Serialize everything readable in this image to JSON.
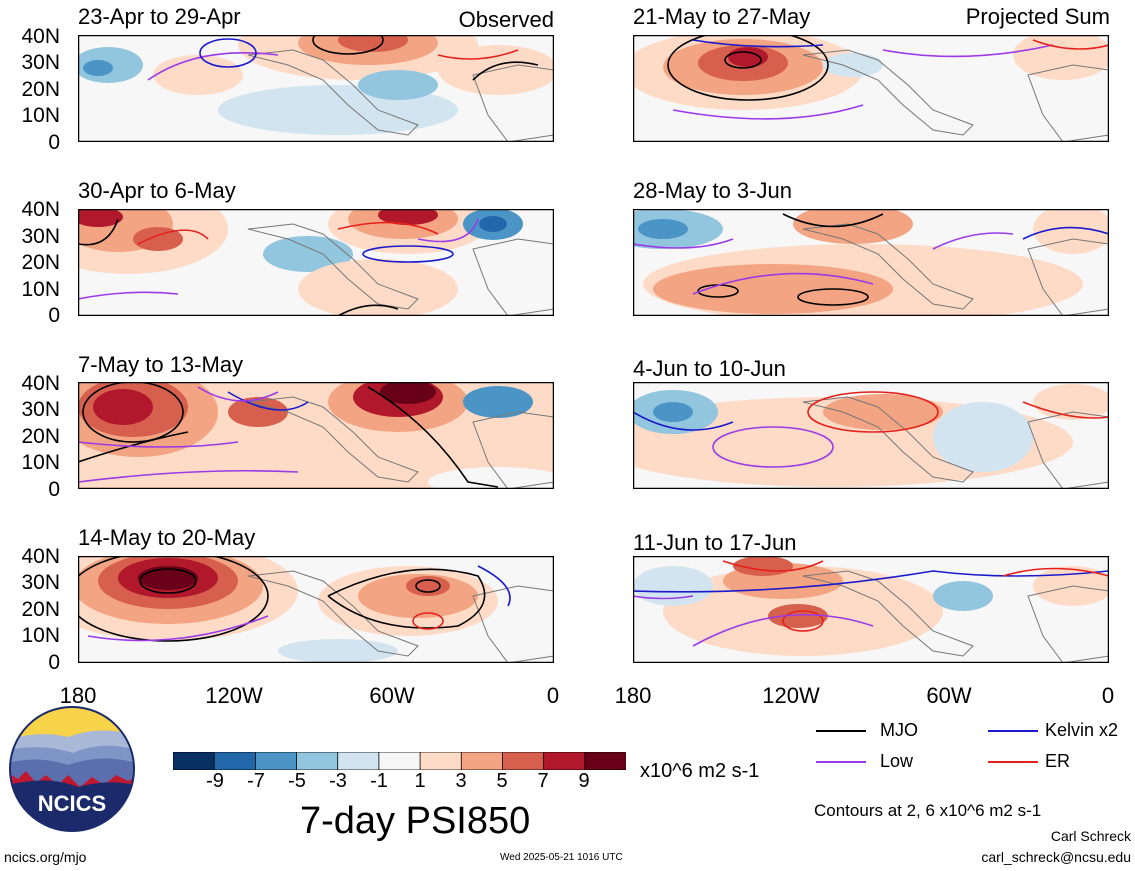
{
  "header": {
    "observed_label": "Observed",
    "projected_label": "Projected Sum"
  },
  "panels": {
    "observed": [
      {
        "title": "23-Apr to 29-Apr"
      },
      {
        "title": "30-Apr to 6-May"
      },
      {
        "title": "7-May to 13-May"
      },
      {
        "title": "14-May to 20-May"
      }
    ],
    "projected": [
      {
        "title": "21-May to 27-May"
      },
      {
        "title": "28-May to 3-Jun"
      },
      {
        "title": "4-Jun to 10-Jun"
      },
      {
        "title": "11-Jun to 17-Jun"
      }
    ]
  },
  "axes": {
    "y_ticks": [
      "40N",
      "30N",
      "20N",
      "10N",
      "0"
    ],
    "x_ticks": [
      "180",
      "120W",
      "60W",
      "0"
    ]
  },
  "colorbar": {
    "colors": [
      "#083063",
      "#2367ab",
      "#4b95c6",
      "#92c5de",
      "#d1e4ef",
      "#f7f7f7",
      "#fddbc7",
      "#f3a482",
      "#d6604d",
      "#b2182b",
      "#680018"
    ],
    "labels": [
      "-9",
      "-7",
      "-5",
      "-3",
      "-1",
      "1",
      "3",
      "5",
      "7",
      "9"
    ],
    "units": "x10^6 m2 s-1",
    "title": "7-day PSI850"
  },
  "legend": {
    "items": [
      {
        "label": "MJO",
        "color": "#000000"
      },
      {
        "label": "Kelvin x2",
        "color": "#1a1acc"
      },
      {
        "label": "Low",
        "color": "#9b3ae6"
      },
      {
        "label": "ER",
        "color": "#e6201a"
      }
    ],
    "contours_note": "Contours at 2, 6 x10^6 m2 s-1"
  },
  "footer": {
    "logo_text": "NCICS",
    "url": "ncics.org/mjo",
    "timestamp": "Wed 2025-05-21 1016 UTC",
    "author": "Carl Schreck",
    "email": "carl_schreck@ncsu.edu"
  }
}
